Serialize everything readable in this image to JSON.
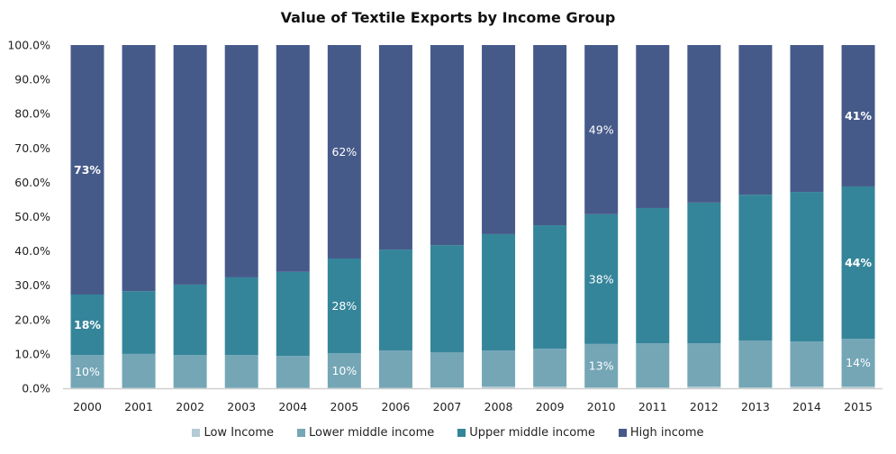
{
  "chart_data": {
    "type": "bar",
    "stacked": true,
    "title": "Value of Textile Exports by Income Group",
    "xlabel": "",
    "ylabel": "",
    "ylim": [
      0,
      100
    ],
    "yticks": [
      "0.0%",
      "10.0%",
      "20.0%",
      "30.0%",
      "40.0%",
      "50.0%",
      "60.0%",
      "70.0%",
      "80.0%",
      "90.0%",
      "100.0%"
    ],
    "grid": false,
    "legend_position": "bottom",
    "categories": [
      "2000",
      "2001",
      "2002",
      "2003",
      "2004",
      "2005",
      "2006",
      "2007",
      "2008",
      "2009",
      "2010",
      "2011",
      "2012",
      "2013",
      "2014",
      "2015"
    ],
    "series": [
      {
        "name": "Low Income",
        "color": "#b4cbd3",
        "values": [
          0.1,
          0.1,
          0.1,
          0.1,
          0.1,
          0.1,
          0.1,
          0.2,
          0.5,
          0.5,
          0.2,
          0.2,
          0.5,
          0.2,
          0.5,
          0.5
        ]
      },
      {
        "name": "Lower middle income",
        "color": "#74a6b6",
        "values": [
          9.6,
          9.9,
          9.6,
          9.6,
          9.3,
          10.1,
          10.9,
          10.3,
          10.5,
          11.0,
          12.7,
          12.9,
          12.6,
          13.7,
          13.1,
          13.9
        ]
      },
      {
        "name": "Upper middle income",
        "color": "#35859a",
        "values": [
          17.6,
          18.3,
          20.5,
          22.6,
          24.5,
          27.6,
          29.4,
          31.2,
          33.9,
          36.0,
          37.8,
          39.4,
          41.0,
          42.5,
          43.6,
          44.4
        ]
      },
      {
        "name": "High income",
        "color": "#465a8a",
        "values": [
          72.7,
          71.7,
          69.8,
          67.7,
          66.1,
          62.2,
          59.6,
          58.3,
          55.1,
          52.5,
          49.3,
          47.5,
          45.9,
          43.6,
          42.8,
          41.2
        ]
      }
    ],
    "annotations": [
      {
        "category": "2000",
        "series": "High income",
        "text": "73%",
        "bold": true
      },
      {
        "category": "2000",
        "series": "Upper middle income",
        "text": "18%",
        "bold": true
      },
      {
        "category": "2000",
        "series": "Lower middle income",
        "text": "10%",
        "bold": false
      },
      {
        "category": "2005",
        "series": "High income",
        "text": "62%",
        "bold": false
      },
      {
        "category": "2005",
        "series": "Upper middle income",
        "text": "28%",
        "bold": false
      },
      {
        "category": "2005",
        "series": "Lower middle income",
        "text": "10%",
        "bold": false
      },
      {
        "category": "2010",
        "series": "High income",
        "text": "49%",
        "bold": false
      },
      {
        "category": "2010",
        "series": "Upper middle income",
        "text": "38%",
        "bold": false
      },
      {
        "category": "2010",
        "series": "Lower middle income",
        "text": "13%",
        "bold": false
      },
      {
        "category": "2015",
        "series": "High income",
        "text": "41%",
        "bold": true
      },
      {
        "category": "2015",
        "series": "Upper middle income",
        "text": "44%",
        "bold": true
      },
      {
        "category": "2015",
        "series": "Lower middle income",
        "text": "14%",
        "bold": false
      }
    ]
  }
}
